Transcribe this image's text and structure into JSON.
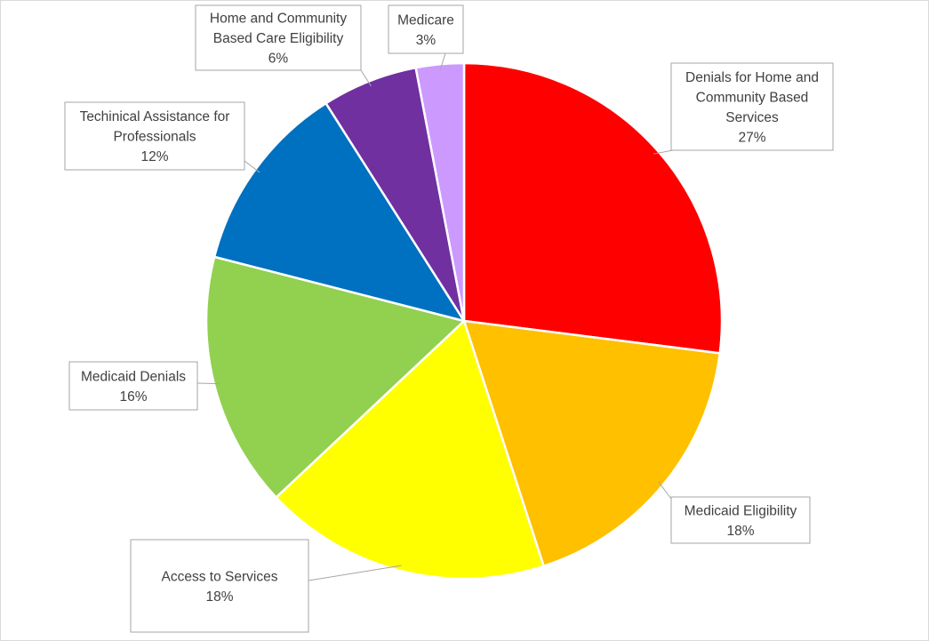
{
  "chart_data": {
    "type": "pie",
    "title": "",
    "slices": [
      {
        "label": "Denials for Home and Community Based Services",
        "value": 27,
        "display": "27%",
        "color": "#ff0000"
      },
      {
        "label": "Medicaid Eligibility",
        "value": 18,
        "display": "18%",
        "color": "#ffc000"
      },
      {
        "label": "Access to Services",
        "value": 18,
        "display": "18%",
        "color": "#ffff00"
      },
      {
        "label": "Medicaid Denials",
        "value": 16,
        "display": "16%",
        "color": "#92d050"
      },
      {
        "label": "Techinical Assistance for Professionals",
        "value": 12,
        "display": "12%",
        "color": "#0070c0"
      },
      {
        "label": "Home and Community Based Care Eligibility",
        "value": 6,
        "display": "6%",
        "color": "#7030a0"
      },
      {
        "label": "Medicare",
        "value": 3,
        "display": "3%",
        "color": "#cc99ff"
      }
    ],
    "start_angle_deg": 0,
    "direction": "clockwise",
    "legend": "none",
    "data_labels": "callouts"
  }
}
